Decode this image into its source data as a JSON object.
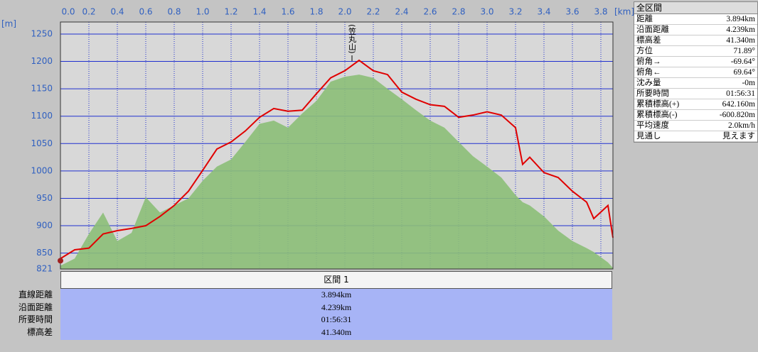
{
  "chart_data": {
    "type": "area-profile",
    "annotation": {
      "text": "(笠丸山)",
      "x": 2.05
    },
    "x_unit": "[km]",
    "y_unit": "[m]",
    "x": [
      0,
      0.1,
      0.2,
      0.3,
      0.4,
      0.5,
      0.6,
      0.7,
      0.8,
      0.9,
      1.0,
      1.1,
      1.2,
      1.3,
      1.4,
      1.5,
      1.6,
      1.7,
      1.8,
      1.9,
      2.0,
      2.1,
      2.2,
      2.3,
      2.4,
      2.5,
      2.6,
      2.7,
      2.8,
      2.9,
      3.0,
      3.1,
      3.2,
      3.25,
      3.3,
      3.4,
      3.5,
      3.6,
      3.7,
      3.75,
      3.85,
      3.885
    ],
    "series": [
      {
        "style": "area",
        "color": "#8cbf78",
        "values": [
          827,
          840,
          885,
          924,
          872,
          887,
          952,
          924,
          937,
          950,
          982,
          1008,
          1021,
          1053,
          1086,
          1092,
          1079,
          1105,
          1128,
          1163,
          1172,
          1176,
          1170,
          1150,
          1131,
          1111,
          1092,
          1079,
          1053,
          1027,
          1008,
          988,
          956,
          943,
          937,
          917,
          891,
          872,
          859,
          852,
          833,
          823
        ]
      },
      {
        "style": "line",
        "color": "#e00000",
        "values": [
          840,
          856,
          859,
          885,
          891,
          895,
          900,
          917,
          937,
          963,
          1001,
          1040,
          1053,
          1073,
          1098,
          1114,
          1109,
          1111,
          1141,
          1170,
          1183,
          1202,
          1183,
          1176,
          1144,
          1131,
          1121,
          1118,
          1098,
          1102,
          1108,
          1102,
          1079,
          1012,
          1025,
          997,
          988,
          963,
          943,
          913,
          937,
          878
        ]
      }
    ],
    "xlim": [
      0,
      3.885
    ],
    "ylim": [
      821,
      1272
    ],
    "xticks": [
      {
        "value": 0,
        "label": "0.0"
      },
      0.2,
      0.4,
      0.6,
      0.8,
      {
        "value": 1,
        "label": "1.0"
      },
      1.2,
      1.4,
      1.6,
      1.8,
      {
        "value": 2,
        "label": "2.0"
      },
      2.2,
      2.4,
      2.6,
      2.8,
      {
        "value": 3,
        "label": "3.0"
      },
      3.2,
      3.4,
      3.6,
      3.8
    ],
    "yticks": [
      821,
      850,
      900,
      950,
      1000,
      1050,
      1100,
      1150,
      1200,
      1250
    ],
    "grid": true
  },
  "stats_panel": {
    "title": "全区間",
    "rows": [
      [
        "距離",
        "3.894km"
      ],
      [
        "沿面距離",
        "4.239km"
      ],
      [
        "標高差",
        "41.340m"
      ],
      [
        "方位",
        "71.89°"
      ],
      [
        "俯角→",
        "-69.64°"
      ],
      [
        "俯角←",
        "69.64°"
      ],
      [
        "沈み量",
        "-0m"
      ],
      [
        "所要時間",
        "01:56:31"
      ],
      [
        "累積標高(+)",
        "642.160m"
      ],
      [
        "累積標高(-)",
        "-600.820m"
      ],
      [
        "平均速度",
        "2.0km/h"
      ],
      [
        "見通し",
        "見えます"
      ]
    ]
  },
  "section_table": {
    "header": "区間 1",
    "rows": [
      [
        "直線距離",
        "3.894km"
      ],
      [
        "沿面距離",
        "4.239km"
      ],
      [
        "所要時間",
        "01:56:31"
      ],
      [
        "標高差",
        "41.340m"
      ]
    ]
  }
}
